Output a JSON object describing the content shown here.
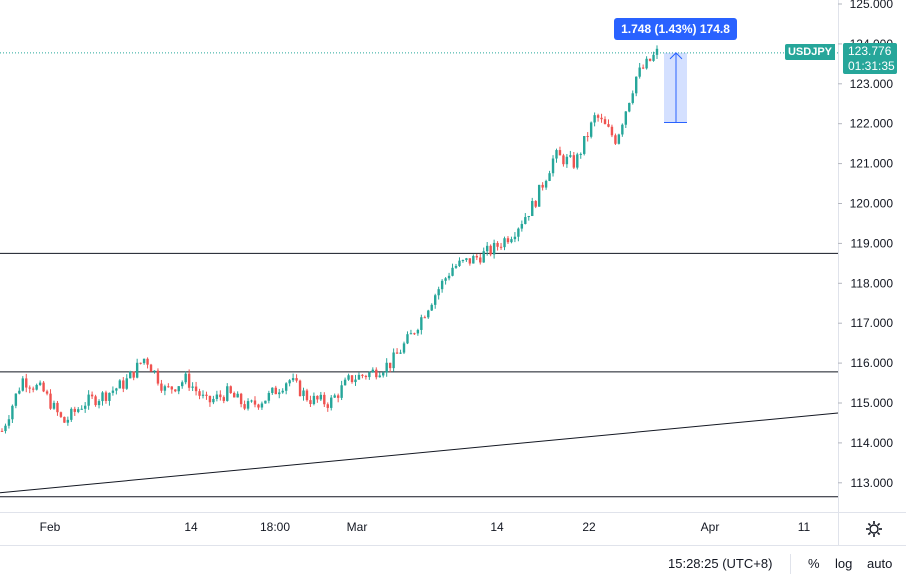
{
  "chart_data": {
    "type": "candlestick",
    "symbol": "USDJPY",
    "last_price": "123.776",
    "countdown": "01:31:35",
    "y_ticks": [
      "125.000",
      "124.000",
      "123.000",
      "122.000",
      "121.000",
      "120.000",
      "119.000",
      "118.000",
      "117.000",
      "116.000",
      "115.000",
      "114.000",
      "113.000"
    ],
    "y_tick_values": [
      125,
      124,
      123,
      122,
      121,
      120,
      119,
      118,
      117,
      116,
      115,
      114,
      113
    ],
    "ylim": [
      112.55,
      125.1
    ],
    "x_ticks": [
      "Feb",
      "14",
      "18:00",
      "Mar",
      "14",
      "22",
      "Apr",
      "11"
    ],
    "price_path": [
      114.3,
      115.6,
      115.3,
      114.5,
      115.0,
      115.2,
      115.5,
      116.15,
      115.3,
      115.6,
      115.0,
      115.25,
      114.9,
      115.15,
      115.6,
      115.1,
      115.0,
      115.6,
      115.75,
      116.0,
      116.7,
      117.6,
      118.4,
      118.6,
      118.85,
      119.3,
      120.0,
      121.2,
      121.0,
      122.2,
      121.6,
      123.2,
      123.776
    ],
    "measure": {
      "label": "1.748 (1.43%) 174.8",
      "from": 122.03,
      "to": 123.776
    },
    "lines": [
      {
        "kind": "horizontal",
        "price": 118.75
      },
      {
        "kind": "horizontal",
        "price": 115.78
      },
      {
        "kind": "horizontal",
        "price": 112.65
      },
      {
        "kind": "trend",
        "from_price": 112.75,
        "to_price": 114.75
      }
    ],
    "colors": {
      "up": "#26a69a",
      "down": "#ef5350",
      "measure": "#2962ff",
      "tag": "#26a69a",
      "lines": "#131722"
    }
  },
  "bottom_bar": {
    "clock": "15:28:25 (UTC+8)",
    "percent_label": "%",
    "log_label": "log",
    "auto_label": "auto"
  },
  "icons": {
    "settings": "gear-icon"
  }
}
